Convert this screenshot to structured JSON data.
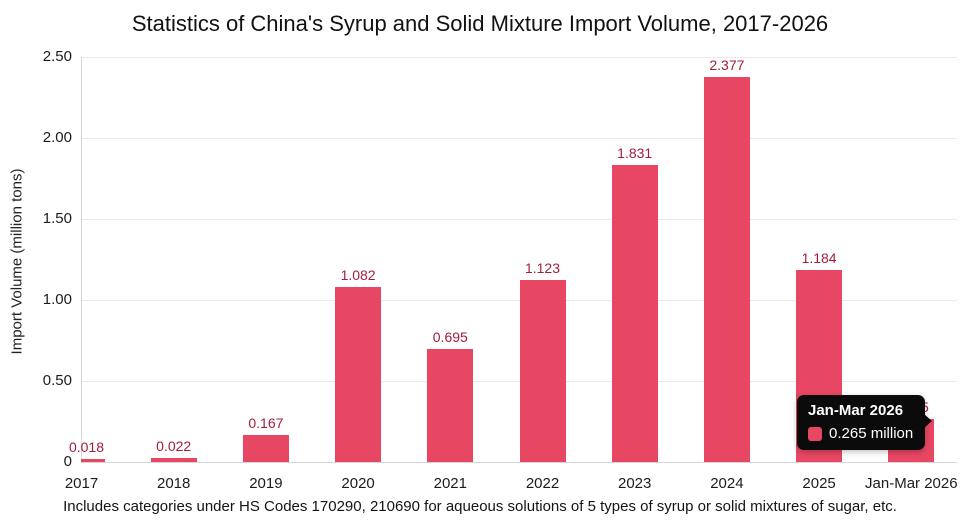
{
  "chart_data": {
    "type": "bar",
    "title": "Statistics of China's Syrup and Solid Mixture Import Volume, 2017-2026",
    "ylabel": "Import Volume (million tons)",
    "categories": [
      "2017",
      "2018",
      "2019",
      "2020",
      "2021",
      "2022",
      "2023",
      "2024",
      "2025",
      "Jan-Mar 2026"
    ],
    "values": [
      0.018,
      0.022,
      0.167,
      1.082,
      0.695,
      1.123,
      1.831,
      2.377,
      1.184,
      0.265
    ],
    "value_labels": [
      "0.018",
      "0.022",
      "0.167",
      "1.082",
      "0.695",
      "1.123",
      "1.831",
      "2.377",
      "1.184",
      "0.265"
    ],
    "yticks": [
      {
        "label": "0",
        "value": 0
      },
      {
        "label": "0.50",
        "value": 0.5
      },
      {
        "label": "1.00",
        "value": 1.0
      },
      {
        "label": "1.50",
        "value": 1.5
      },
      {
        "label": "2.00",
        "value": 2.0
      },
      {
        "label": "2.50",
        "value": 2.5
      }
    ],
    "ylim": [
      0,
      2.5
    ],
    "grid": true,
    "legend": "none",
    "footnote": "Includes categories under HS Codes 170290, 210690 for aqueous solutions of 5 types of syrup or solid mixtures of sugar, etc.",
    "colors": {
      "bar": "#e74763",
      "value_label": "#a31e3c",
      "grid": "#eaeaea",
      "axis": "#d5d5d5",
      "tick_text": "#1c1c1c",
      "title_text": "#111111"
    }
  },
  "tooltip": {
    "title": "Jan-Mar 2026",
    "value_text": "0.265 million",
    "background": "#0b0b0b",
    "swatch_color": "#e74763",
    "text_color": "#ffffff"
  }
}
